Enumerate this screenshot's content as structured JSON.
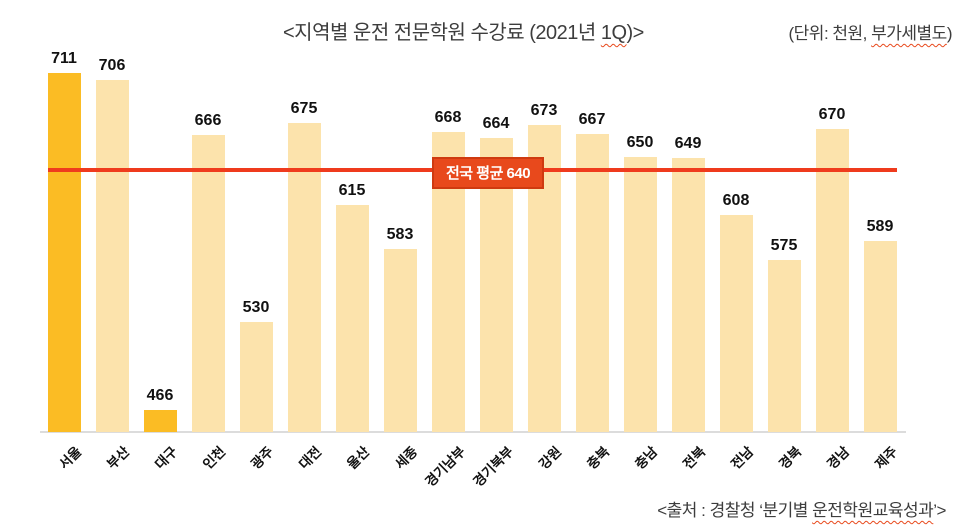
{
  "header": {
    "title_pre": "<지역별 운전 전문학원 수강료 (2021년 ",
    "title_spell": "1Q",
    "title_post": ")>",
    "unit_pre": "(단위: 천원, ",
    "unit_spell": "부가세별도",
    "unit_post": ")"
  },
  "footer": {
    "source_pre": "<출처 : 경찰청 ‘분기별 ",
    "source_spell": "운전학원교육성과",
    "source_post": "’>"
  },
  "chart_data": {
    "type": "bar",
    "title": "지역별 운전 전문학원 수강료 (2021년 1Q)",
    "unit": "천원, 부가세별도",
    "categories": [
      "서울",
      "부산",
      "대구",
      "인천",
      "광주",
      "대전",
      "울산",
      "세종",
      "경기남부",
      "경기북부",
      "강원",
      "충북",
      "충남",
      "전북",
      "전남",
      "경북",
      "경남",
      "제주"
    ],
    "values": [
      711,
      706,
      466,
      666,
      530,
      675,
      615,
      583,
      668,
      664,
      673,
      667,
      650,
      649,
      608,
      575,
      670,
      589
    ],
    "highlighted": [
      "서울",
      "대구"
    ],
    "average_line": {
      "label": "전국 평균 640",
      "value": 640
    },
    "ylim": [
      450,
      711
    ],
    "grid": false,
    "legend": "none",
    "colors": {
      "bar": "#fce3ac",
      "bar_highlight": "#fbbc24",
      "average_line": "#ef3b1d",
      "average_label_bg": "#e8491c",
      "average_label_border": "#cf3a10",
      "average_label_text": "#ffffff"
    },
    "source": "<출처 : 경찰청 ‘분기별 운전학원교육성과’>"
  }
}
